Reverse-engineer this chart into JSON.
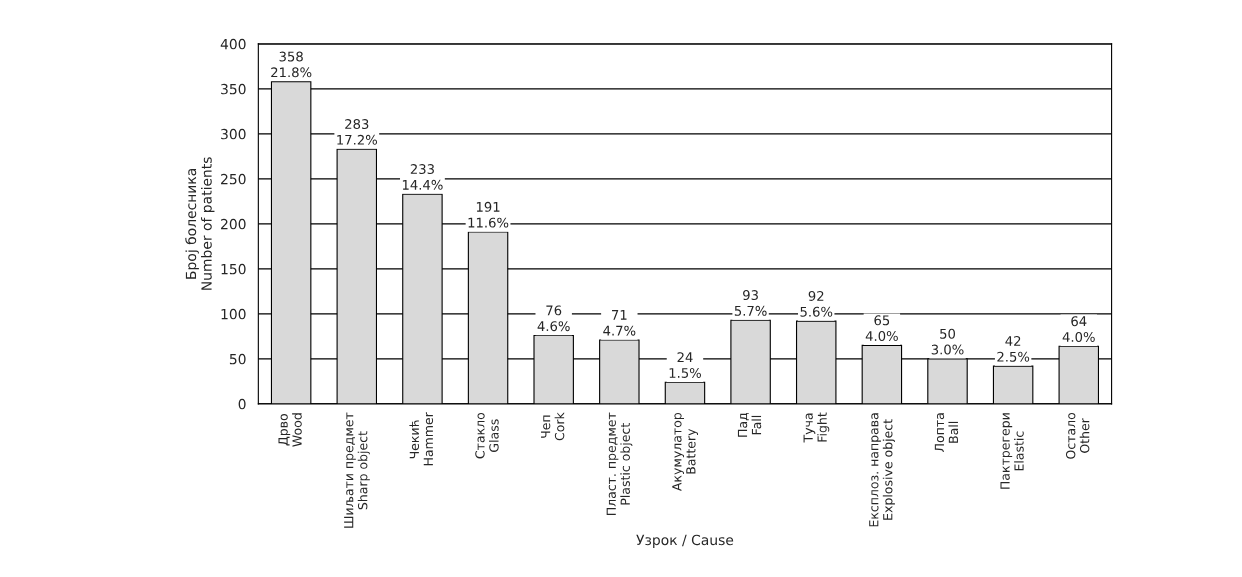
{
  "chart_data": {
    "type": "bar",
    "xlabel": "Узрок / Cause",
    "ylabel": "Број болесника\nNumber of patients",
    "categories": [
      "Дрво\nWood",
      "Шиљати предмет\nSharp object",
      "Чекић\nHammer",
      "Стакло\nGlass",
      "Чеп\nCork",
      "Пласт. предмет\nPlastic object",
      "Акумулатор\nBattery",
      "Пад\nFall",
      "Туча\nFight",
      "Експлоз. направа\nExplosive object",
      "Лопта\nBall",
      "Пактрегери\nElastic",
      "Остало\nOther"
    ],
    "values": [
      358,
      283,
      233,
      191,
      76,
      71,
      24,
      93,
      92,
      65,
      50,
      42,
      64
    ],
    "value_labels": [
      "358\n21.8%",
      "283\n17.2%",
      "233\n14.4%",
      "191\n11.6%",
      "76\n4.6%",
      "71\n4.7%",
      "24\n1.5%",
      "93\n5.7%",
      "92\n5.6%",
      "65\n4.0%",
      "50\n3.0%",
      "42\n2.5%",
      "64\n4.0%"
    ],
    "color": "#d9d9d9",
    "ylim": [
      0,
      400
    ],
    "yticks": [
      0,
      50,
      100,
      150,
      200,
      250,
      300,
      350,
      400
    ],
    "grid": "y"
  }
}
